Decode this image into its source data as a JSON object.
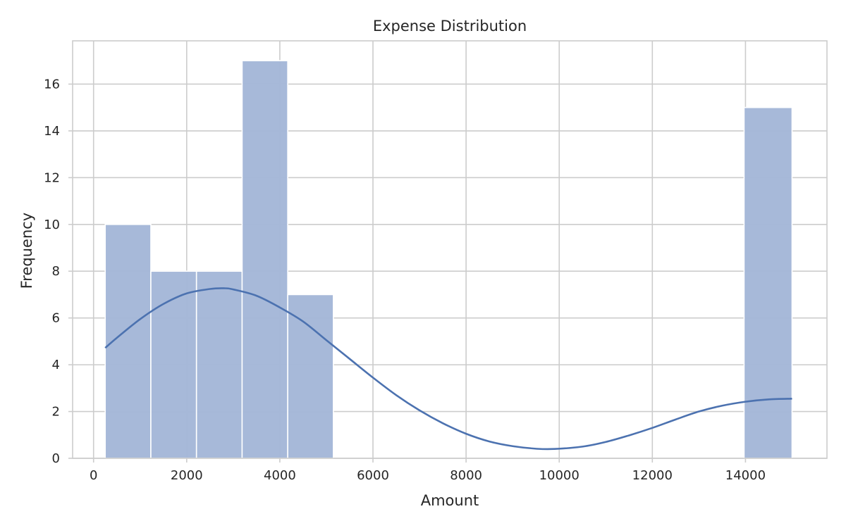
{
  "chart_data": {
    "type": "bar",
    "title": "Expense Distribution",
    "xlabel": "Amount",
    "ylabel": "Frequency",
    "xlim": [
      -450,
      15750
    ],
    "ylim": [
      0,
      17.85
    ],
    "xticks": [
      0,
      2000,
      4000,
      6000,
      8000,
      10000,
      12000,
      14000
    ],
    "yticks": [
      0,
      2,
      4,
      6,
      8,
      10,
      12,
      14,
      16
    ],
    "grid": true,
    "bins": [
      {
        "x0": 250,
        "x1": 1230,
        "count": 10
      },
      {
        "x0": 1230,
        "x1": 2210,
        "count": 8
      },
      {
        "x0": 2210,
        "x1": 3190,
        "count": 8
      },
      {
        "x0": 3190,
        "x1": 4170,
        "count": 17
      },
      {
        "x0": 4170,
        "x1": 5150,
        "count": 7
      },
      {
        "x0": 5150,
        "x1": 6130,
        "count": 0
      },
      {
        "x0": 6130,
        "x1": 7110,
        "count": 0
      },
      {
        "x0": 7110,
        "x1": 8090,
        "count": 0
      },
      {
        "x0": 8090,
        "x1": 9070,
        "count": 0
      },
      {
        "x0": 9070,
        "x1": 10050,
        "count": 0
      },
      {
        "x0": 10050,
        "x1": 11030,
        "count": 0
      },
      {
        "x0": 11030,
        "x1": 12010,
        "count": 0
      },
      {
        "x0": 12010,
        "x1": 12990,
        "count": 0
      },
      {
        "x0": 12990,
        "x1": 13970,
        "count": 0
      },
      {
        "x0": 13970,
        "x1": 15000,
        "count": 15
      }
    ],
    "kde": {
      "x": [
        250,
        500,
        1000,
        1500,
        2000,
        2500,
        2800,
        3000,
        3500,
        4000,
        4500,
        5000,
        5500,
        6000,
        6500,
        7000,
        7500,
        8000,
        8500,
        9000,
        9500,
        9900,
        10500,
        11000,
        11500,
        12000,
        12500,
        13000,
        13500,
        14000,
        14500,
        15000
      ],
      "y": [
        4.72,
        5.15,
        5.95,
        6.6,
        7.05,
        7.24,
        7.27,
        7.22,
        6.95,
        6.45,
        5.85,
        5.05,
        4.25,
        3.45,
        2.7,
        2.05,
        1.5,
        1.05,
        0.72,
        0.52,
        0.41,
        0.4,
        0.5,
        0.7,
        0.98,
        1.3,
        1.66,
        2.0,
        2.25,
        2.42,
        2.52,
        2.55
      ]
    },
    "colors": {
      "bar": "#a4b7d8",
      "kde": "#4c72b0",
      "grid": "#cccccc",
      "text": "#262626"
    }
  }
}
